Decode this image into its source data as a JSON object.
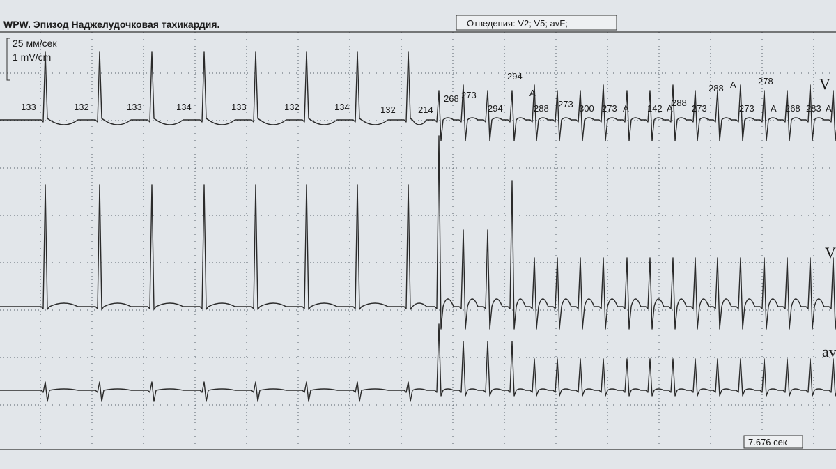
{
  "header": {
    "title": "WPW. Эпизод Наджелудочковая тахикардия.",
    "leads": "Отведения: V2; V5; avF;"
  },
  "calibration": {
    "speed": "25 мм/сек",
    "gain": "1 mV/cm"
  },
  "lead_labels": [
    "V",
    "V",
    "av"
  ],
  "rr_labels": [
    133,
    132,
    133,
    134,
    133,
    132,
    134,
    132,
    214,
    268,
    273,
    294,
    294,
    "A",
    288,
    273,
    300,
    273,
    "A",
    142,
    "A",
    288,
    273,
    288,
    "A",
    273,
    278,
    "A",
    268,
    283,
    "A"
  ],
  "footer": {
    "duration": "7.676 сек"
  }
}
